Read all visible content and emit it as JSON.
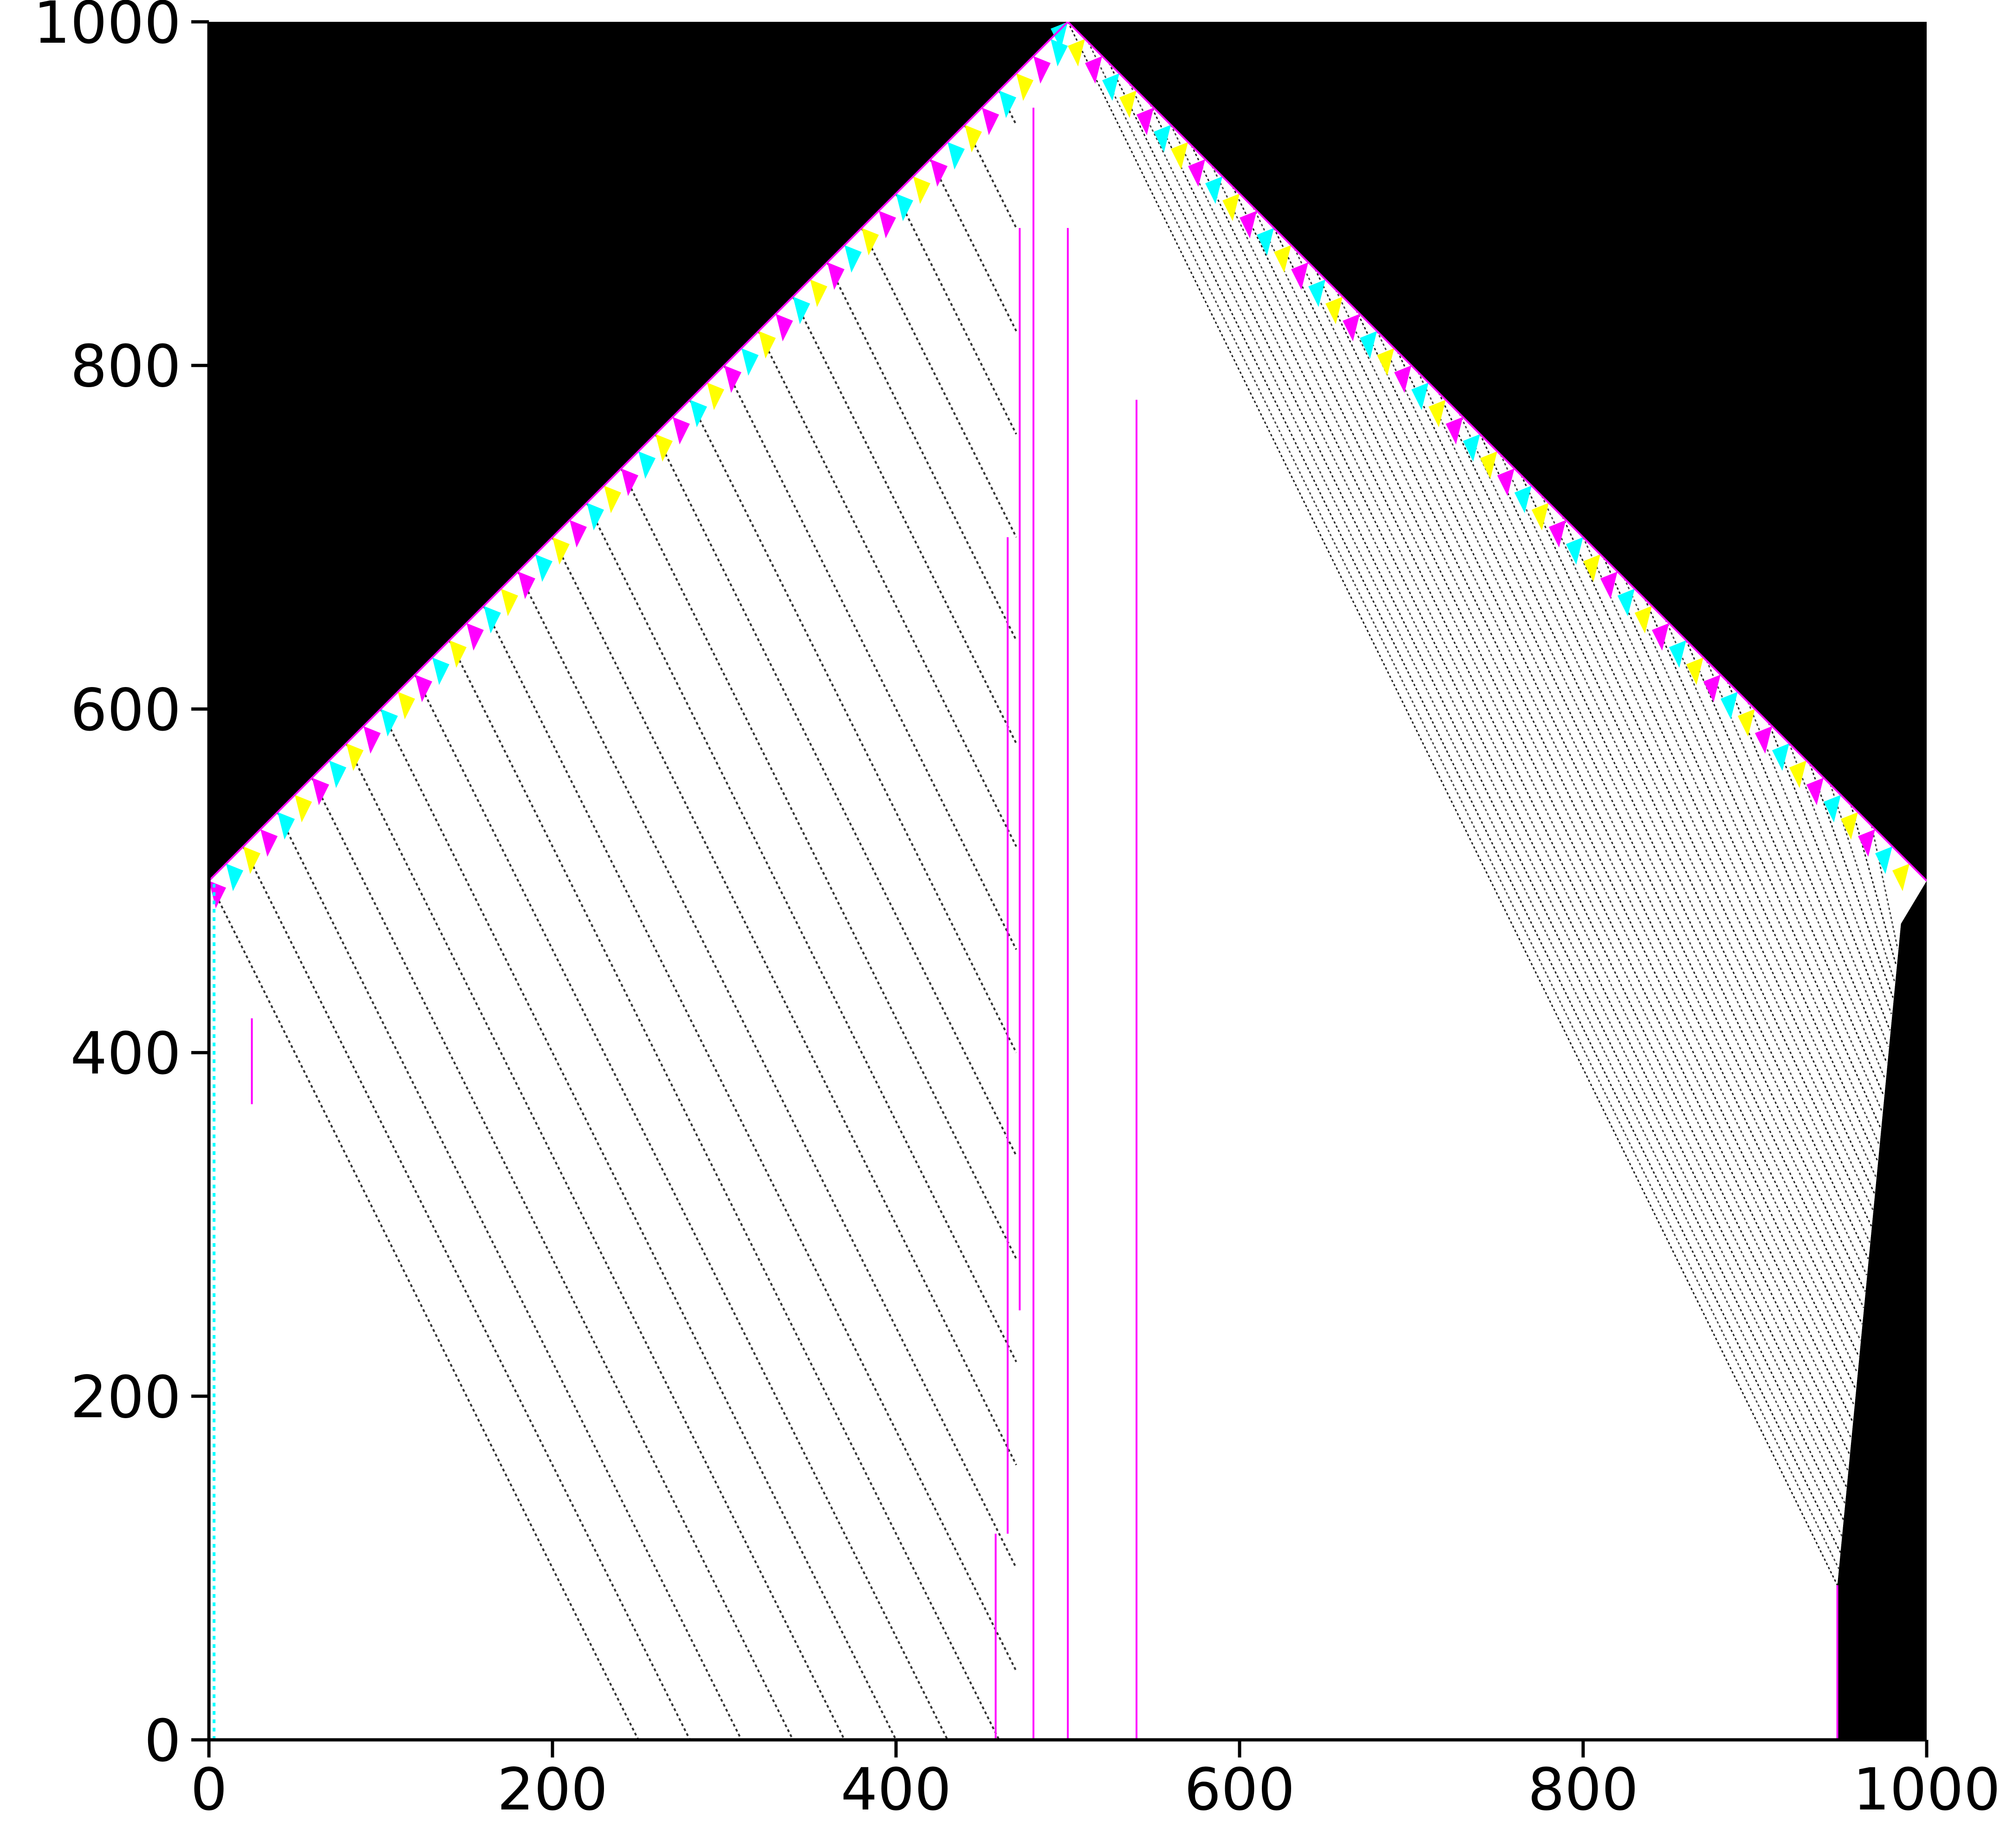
{
  "chart_data": {
    "type": "heatmap",
    "title": "",
    "xlabel": "",
    "ylabel": "",
    "xlim": [
      0,
      1000
    ],
    "ylim": [
      0,
      1000
    ],
    "xticks": [
      0,
      200,
      400,
      600,
      800,
      1000
    ],
    "yticks": [
      0,
      200,
      400,
      600,
      800,
      1000
    ],
    "xtick_labels": [
      "0",
      "200",
      "400",
      "600",
      "800",
      "1000"
    ],
    "ytick_labels": [
      "0",
      "200",
      "400",
      "600",
      "800",
      "1000"
    ],
    "grid": false,
    "legend": "none",
    "background_color": "#000000",
    "interior_color": "#ffffff",
    "rule_colors": [
      "#ff00ff",
      "#00ffff",
      "#ffff00",
      "#000000"
    ],
    "regions": {
      "black_outer_polygon": [
        [
          0,
          1000
        ],
        [
          0,
          500
        ],
        [
          500,
          1000
        ]
      ],
      "black_right_polygon": [
        [
          500,
          1000
        ],
        [
          1000,
          1000
        ],
        [
          1000,
          0
        ],
        [
          948,
          0
        ],
        [
          948,
          90
        ],
        [
          985,
          475
        ],
        [
          1000,
          500
        ]
      ],
      "white_interior_polygon": [
        [
          0,
          0
        ],
        [
          0,
          500
        ],
        [
          500,
          1000
        ],
        [
          1000,
          500
        ],
        [
          985,
          475
        ],
        [
          948,
          90
        ],
        [
          948,
          0
        ]
      ]
    },
    "vertical_lines": [
      {
        "x": 458,
        "y0": 0,
        "y1": 120
      },
      {
        "x": 480,
        "y0": 0,
        "y1": 950
      },
      {
        "x": 500,
        "y0": 0,
        "y1": 880
      },
      {
        "x": 540,
        "y0": 0,
        "y1": 780
      },
      {
        "x": 465,
        "y0": 120,
        "y1": 700
      },
      {
        "x": 472,
        "y0": 250,
        "y1": 880
      },
      {
        "x": 948,
        "y0": 0,
        "y1": 90
      },
      {
        "x": 25,
        "y0": 370,
        "y1": 420
      }
    ],
    "left_diagonals_start_x": [
      0,
      20,
      40,
      60,
      80,
      100,
      120,
      140,
      160,
      180,
      200,
      220,
      240,
      260,
      280,
      300,
      320,
      340,
      360,
      380,
      400,
      420,
      440,
      460
    ],
    "right_diagonal_count": 40
  }
}
